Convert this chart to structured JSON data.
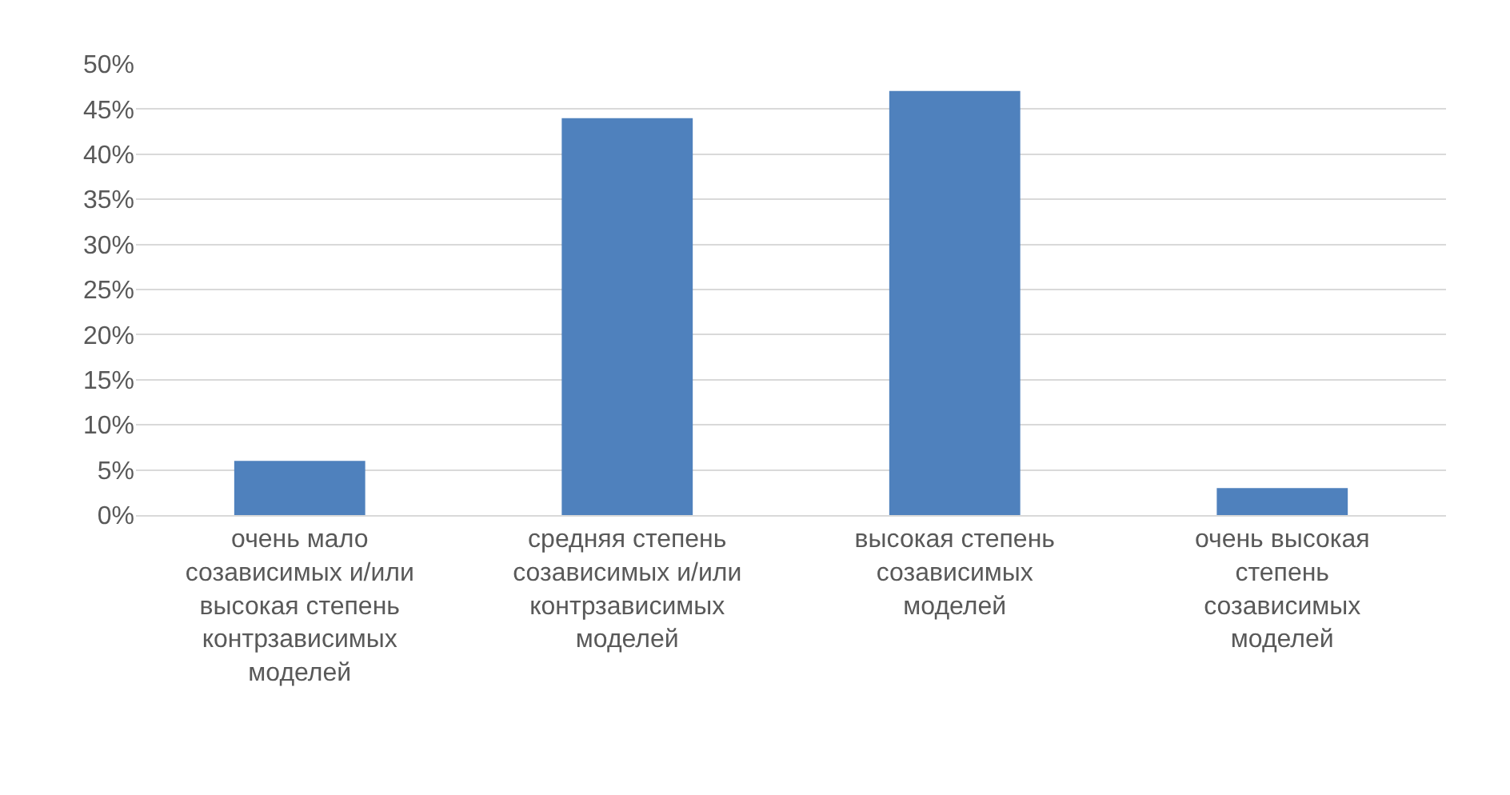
{
  "chart_data": {
    "type": "bar",
    "categories": [
      "очень мало созависимых и/или высокая степень контрзависимых моделей",
      "средняя степень созависимых и/или контрзависимых моделей",
      "высокая степень созависимых моделей",
      "очень высокая степень созависимых моделей"
    ],
    "values": [
      6,
      44,
      47,
      3
    ],
    "color": "#4f81bd",
    "ylim": [
      0,
      50
    ],
    "yticks": [
      {
        "value": 0,
        "label": "0%"
      },
      {
        "value": 5,
        "label": "5%"
      },
      {
        "value": 10,
        "label": "10%"
      },
      {
        "value": 15,
        "label": "15%"
      },
      {
        "value": 20,
        "label": "20%"
      },
      {
        "value": 25,
        "label": "25%"
      },
      {
        "value": 30,
        "label": "30%"
      },
      {
        "value": 35,
        "label": "35%"
      },
      {
        "value": 40,
        "label": "40%"
      },
      {
        "value": 45,
        "label": "45%"
      },
      {
        "value": 50,
        "label": "50%"
      }
    ],
    "grid": "y"
  }
}
